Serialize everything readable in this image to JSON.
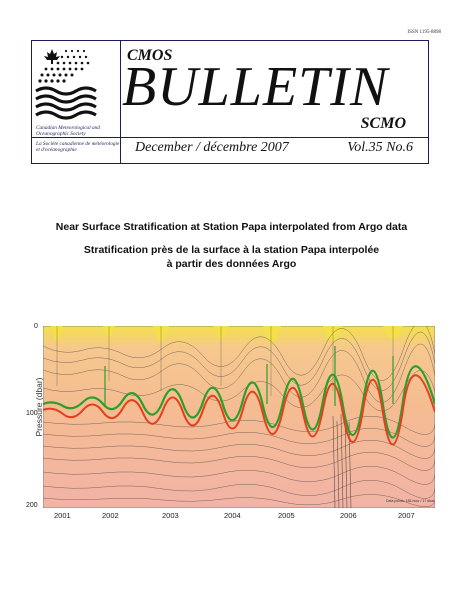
{
  "header": {
    "issn": "ISSN 1195-8898"
  },
  "masthead": {
    "cmos": "CMOS",
    "bulletin": "BULLETIN",
    "scmo": "SCMO",
    "society_en": "Canadian Meteorological and Oceanographic Society",
    "society_fr": "La Société canadienne de météorologie et d'océanographie",
    "issue_date": "December / décembre 2007",
    "issue_volume": "Vol.35 No.6"
  },
  "article": {
    "title_en": "Near Surface Stratification at Station Papa interpolated from Argo data",
    "title_fr_line1": "Stratification près de la surface à la station Papa interpolée",
    "title_fr_line2": "à partir des données Argo"
  },
  "figure": {
    "ylabel": "Pressure (dbar)",
    "y_ticks": [
      "0",
      "100",
      "200"
    ],
    "x_ticks": [
      "2001",
      "2002",
      "2003",
      "2004",
      "2005",
      "2006",
      "2007"
    ],
    "credit": "Data points: 183 hour / 17 dbar",
    "colors": {
      "surface": "#f4e04a",
      "mid": "#f6c08e",
      "deep": "#f2b3a6",
      "green_line": "#2aa02a",
      "red_line": "#e2401e",
      "contour": "#444444"
    }
  }
}
